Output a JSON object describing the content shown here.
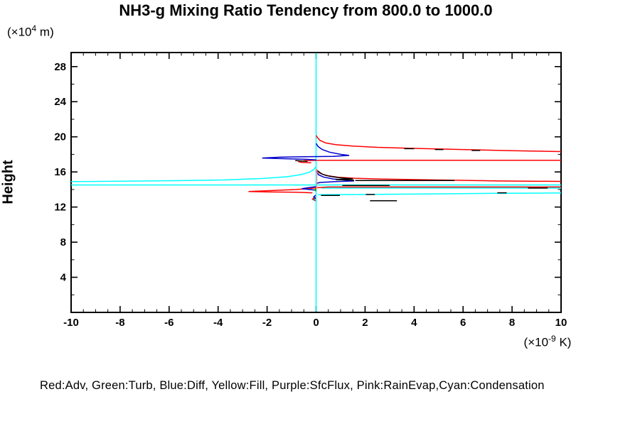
{
  "title": "NH3-g Mixing Ratio Tendency from 800.0 to 1000.0",
  "y_label": "Height",
  "y_unit": {
    "prefix": "(×10",
    "exp": "4",
    "suffix": " m)"
  },
  "x_unit": {
    "prefix": "(×10",
    "exp": "-9",
    "suffix": " K)"
  },
  "legend_text": "Red:Adv, Green:Turb, Blue:Diff, Yellow:Fill, Purple:SfcFlux, Pink:RainEvap,Cyan:Condensation",
  "chart_data": {
    "type": "line",
    "title": "NH3-g Mixing Ratio Tendency from 800.0 to 1000.0",
    "xlabel": "(×10^-9 K)",
    "ylabel": "Height (×10^4 m)",
    "xlim": [
      -10,
      10
    ],
    "ylim": [
      0,
      29.6
    ],
    "x_ticks": [
      -10,
      -8,
      -6,
      -4,
      -2,
      0,
      2,
      4,
      6,
      8,
      10
    ],
    "x_minor_step": 0.5,
    "y_ticks": [
      4,
      8,
      12,
      16,
      20,
      24,
      28
    ],
    "y_minor_step": 2,
    "grid": false,
    "legend_position": "bottom-text-line",
    "series": [
      {
        "name": "Condensation",
        "color": "#00ffff",
        "segments": [
          [
            [
              0,
              29.55
            ],
            [
              0,
              0.1
            ]
          ],
          [
            [
              0,
              16.62
            ],
            [
              -0.07,
              16.35
            ],
            [
              -0.25,
              16.0
            ],
            [
              -0.6,
              15.7
            ],
            [
              -1.2,
              15.45
            ],
            [
              -2.2,
              15.25
            ],
            [
              -3.8,
              15.08
            ],
            [
              -6.5,
              14.98
            ],
            [
              -10,
              14.9
            ]
          ],
          [
            [
              -10,
              14.52
            ],
            [
              10,
              14.52
            ]
          ],
          [
            [
              0.22,
              14.16
            ],
            [
              10,
              14.16
            ]
          ],
          [
            [
              0.08,
              13.4
            ],
            [
              3,
              13.46
            ],
            [
              7.4,
              13.56
            ],
            [
              10,
              13.6
            ]
          ],
          [
            [
              0,
              13.0
            ],
            [
              -0.14,
              12.85
            ],
            [
              0,
              12.68
            ]
          ]
        ]
      },
      {
        "name": "Adv",
        "color": "#ff0000",
        "segments": [
          [
            [
              0,
              20.15
            ],
            [
              0.06,
              19.9
            ],
            [
              0.15,
              19.6
            ],
            [
              0.4,
              19.3
            ],
            [
              0.8,
              19.1
            ],
            [
              1.5,
              18.95
            ],
            [
              2.5,
              18.8
            ],
            [
              4,
              18.68
            ],
            [
              6,
              18.55
            ],
            [
              8,
              18.42
            ],
            [
              10,
              18.32
            ]
          ],
          [
            [
              -0.2,
              17.05
            ],
            [
              -0.6,
              17.1
            ],
            [
              -0.73,
              17.18
            ],
            [
              -0.45,
              17.28
            ],
            [
              0.05,
              17.32
            ],
            [
              10,
              17.32
            ]
          ],
          [
            [
              0,
              16.3
            ],
            [
              0.12,
              15.9
            ],
            [
              0.4,
              15.6
            ],
            [
              0.9,
              15.4
            ],
            [
              1.6,
              15.28
            ],
            [
              2.6,
              15.2
            ],
            [
              5,
              15.08
            ],
            [
              7.5,
              14.97
            ],
            [
              10,
              14.92
            ]
          ],
          [
            [
              10,
              14.28
            ],
            [
              0.5,
              14.28
            ],
            [
              0.1,
              14.22
            ],
            [
              -0.2,
              14.12
            ],
            [
              -0.8,
              14.0
            ],
            [
              -1.8,
              13.88
            ],
            [
              -2.76,
              13.77
            ],
            [
              -1.9,
              13.72
            ],
            [
              -0.8,
              13.68
            ],
            [
              -0.15,
              13.62
            ]
          ],
          [
            [
              -0.02,
              13.12
            ],
            [
              -0.14,
              12.92
            ],
            [
              -0.02,
              12.72
            ]
          ]
        ]
      },
      {
        "name": "Diff",
        "color": "#0000cd",
        "segments": [
          [
            [
              0,
              19.25
            ],
            [
              0.08,
              18.9
            ],
            [
              0.25,
              18.55
            ],
            [
              0.55,
              18.25
            ],
            [
              1.0,
              18.0
            ],
            [
              1.35,
              17.88
            ],
            [
              0.7,
              17.78
            ],
            [
              -0.5,
              17.73
            ],
            [
              -1.5,
              17.68
            ],
            [
              -2.2,
              17.58
            ],
            [
              -1.2,
              17.5
            ],
            [
              -0.4,
              17.44
            ],
            [
              0,
              17.36
            ]
          ],
          [
            [
              0,
              16.08
            ],
            [
              0.1,
              15.68
            ],
            [
              0.3,
              15.42
            ],
            [
              0.7,
              15.2
            ],
            [
              1.25,
              15.05
            ],
            [
              1.55,
              14.97
            ],
            [
              0.8,
              14.9
            ],
            [
              0.15,
              14.8
            ],
            [
              0,
              14.68
            ]
          ],
          [
            [
              0,
              14.32
            ],
            [
              -0.3,
              14.22
            ],
            [
              -0.58,
              14.1
            ],
            [
              -0.28,
              14.0
            ],
            [
              0,
              13.92
            ]
          ],
          [
            [
              -0.02,
              13.35
            ],
            [
              -0.1,
              13.15
            ],
            [
              -0.02,
              12.95
            ]
          ]
        ]
      },
      {
        "name": "Turb",
        "color": "#00aa00",
        "segments": [
          [
            [
              0,
              14.1
            ],
            [
              -0.06,
              13.95
            ],
            [
              0,
              13.82
            ]
          ]
        ]
      },
      {
        "name": "Fill",
        "color": "#ffff00",
        "segments": []
      },
      {
        "name": "SfcFlux",
        "color": "#9900cc",
        "segments": []
      },
      {
        "name": "RainEvap",
        "color": "#ff9f9f",
        "segments": [
          [
            [
              0.03,
              16.3
            ],
            [
              0.03,
              14.12
            ]
          ]
        ]
      },
      {
        "name": "black-unlabeled",
        "color": "#000000",
        "segments": [
          [
            [
              3.6,
              18.65
            ],
            [
              4.0,
              18.65
            ]
          ],
          [
            [
              4.85,
              18.55
            ],
            [
              5.2,
              18.55
            ]
          ],
          [
            [
              6.35,
              18.45
            ],
            [
              6.7,
              18.45
            ]
          ],
          [
            [
              -0.85,
              17.3
            ],
            [
              -0.35,
              17.2
            ]
          ],
          [
            [
              0.05,
              16.15
            ],
            [
              0.25,
              15.75
            ],
            [
              0.55,
              15.5
            ],
            [
              1.0,
              15.32
            ],
            [
              1.5,
              15.22
            ],
            [
              0.8,
              15.12
            ],
            [
              1.55,
              15.06
            ]
          ],
          [
            [
              1.6,
              15.03
            ],
            [
              5.65,
              15.03
            ]
          ],
          [
            [
              1.07,
              14.45
            ],
            [
              3.0,
              14.45
            ]
          ],
          [
            [
              8.65,
              14.16
            ],
            [
              9.45,
              14.16
            ]
          ],
          [
            [
              0.2,
              13.32
            ],
            [
              0.97,
              13.32
            ]
          ],
          [
            [
              2.03,
              13.43
            ],
            [
              2.4,
              13.43
            ]
          ],
          [
            [
              7.4,
              13.62
            ],
            [
              7.78,
              13.62
            ]
          ],
          [
            [
              2.2,
              12.72
            ],
            [
              3.3,
              12.72
            ]
          ]
        ]
      }
    ]
  }
}
